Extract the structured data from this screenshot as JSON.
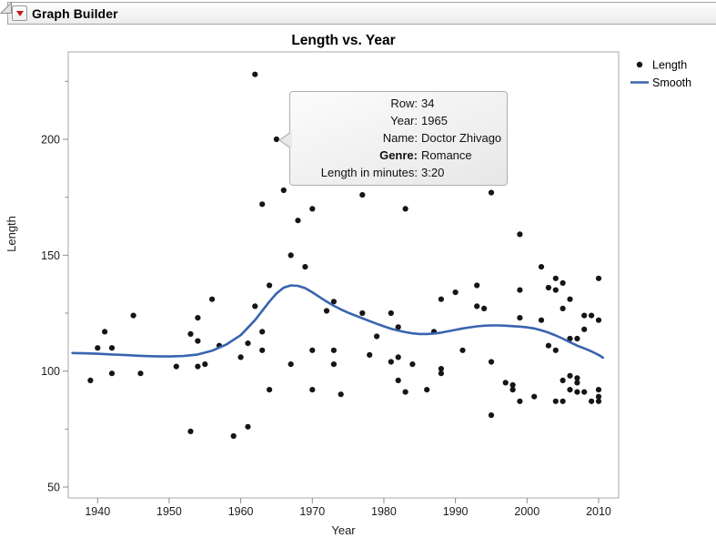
{
  "window": {
    "title": "Graph Builder"
  },
  "header": {
    "disclosure_icon": "disclosure-triangle",
    "menu_icon": "red-triangle-menu"
  },
  "tooltip": {
    "rows": [
      {
        "label": "Row:",
        "value": "34"
      },
      {
        "label": "Year:",
        "value": "1965"
      },
      {
        "label": "Name:",
        "value": "Doctor Zhivago"
      },
      {
        "label": "Genre:",
        "value": "Romance"
      },
      {
        "label": "Length in minutes:",
        "value": "3:20"
      }
    ]
  },
  "colors": {
    "point": "#151515",
    "smooth": "#3a64ae",
    "frame": "#a9a9a9",
    "tick": "#8c8c8c",
    "red_triangle": "#c41a1a"
  },
  "chart_data": {
    "type": "scatter",
    "title": "Length vs. Year",
    "xlabel": "Year",
    "ylabel": "Length",
    "xlim": [
      1935.9,
      2012.8
    ],
    "ylim": [
      45.3,
      237.7
    ],
    "x_ticks": [
      1940,
      1950,
      1960,
      1970,
      1980,
      1990,
      2000,
      2010
    ],
    "y_ticks_major": [
      50,
      100,
      150,
      200
    ],
    "y_ticks_minor": [
      75,
      125,
      175,
      225
    ],
    "grid": false,
    "legend_position": "right",
    "highlighted_point": [
      1965,
      200
    ],
    "legend": [
      {
        "label": "Length",
        "marker": "dot",
        "color": "#151515"
      },
      {
        "label": "Smooth",
        "marker": "line",
        "color": "#3a64ae"
      }
    ],
    "series": [
      {
        "name": "Length",
        "type": "scatter",
        "color": "#151515",
        "points": [
          [
            1939,
            96
          ],
          [
            1940,
            110
          ],
          [
            1941,
            117
          ],
          [
            1942,
            99
          ],
          [
            1942,
            110
          ],
          [
            1945,
            124
          ],
          [
            1946,
            99
          ],
          [
            1951,
            102
          ],
          [
            1953,
            74
          ],
          [
            1953,
            116
          ],
          [
            1954,
            102
          ],
          [
            1954,
            113
          ],
          [
            1954,
            123
          ],
          [
            1955,
            103
          ],
          [
            1956,
            131
          ],
          [
            1957,
            111
          ],
          [
            1959,
            72
          ],
          [
            1960,
            106
          ],
          [
            1961,
            76
          ],
          [
            1961,
            112
          ],
          [
            1962,
            128
          ],
          [
            1962,
            228
          ],
          [
            1963,
            109
          ],
          [
            1963,
            117
          ],
          [
            1963,
            172
          ],
          [
            1964,
            92
          ],
          [
            1964,
            137
          ],
          [
            1965,
            200
          ],
          [
            1966,
            178
          ],
          [
            1967,
            103
          ],
          [
            1967,
            150
          ],
          [
            1968,
            165
          ],
          [
            1969,
            145
          ],
          [
            1970,
            92
          ],
          [
            1970,
            109
          ],
          [
            1970,
            170
          ],
          [
            1972,
            126
          ],
          [
            1973,
            103
          ],
          [
            1973,
            109
          ],
          [
            1973,
            130
          ],
          [
            1974,
            90
          ],
          [
            1977,
            125
          ],
          [
            1977,
            176
          ],
          [
            1978,
            107
          ],
          [
            1979,
            115
          ],
          [
            1981,
            104
          ],
          [
            1981,
            125
          ],
          [
            1982,
            96
          ],
          [
            1982,
            106
          ],
          [
            1982,
            119
          ],
          [
            1983,
            91
          ],
          [
            1983,
            170
          ],
          [
            1984,
            103
          ],
          [
            1986,
            92
          ],
          [
            1987,
            117
          ],
          [
            1988,
            99
          ],
          [
            1988,
            101
          ],
          [
            1988,
            131
          ],
          [
            1990,
            134
          ],
          [
            1991,
            109
          ],
          [
            1993,
            128
          ],
          [
            1993,
            137
          ],
          [
            1994,
            127
          ],
          [
            1995,
            81
          ],
          [
            1995,
            104
          ],
          [
            1995,
            177
          ],
          [
            1997,
            95
          ],
          [
            1998,
            92
          ],
          [
            1998,
            94
          ],
          [
            1999,
            87
          ],
          [
            1999,
            123
          ],
          [
            1999,
            135
          ],
          [
            1999,
            159
          ],
          [
            2001,
            89
          ],
          [
            2002,
            122
          ],
          [
            2002,
            145
          ],
          [
            2003,
            111
          ],
          [
            2003,
            136
          ],
          [
            2004,
            87
          ],
          [
            2004,
            109
          ],
          [
            2004,
            135
          ],
          [
            2004,
            140
          ],
          [
            2005,
            87
          ],
          [
            2005,
            96
          ],
          [
            2005,
            127
          ],
          [
            2005,
            138
          ],
          [
            2006,
            92
          ],
          [
            2006,
            98
          ],
          [
            2006,
            114
          ],
          [
            2006,
            131
          ],
          [
            2007,
            91
          ],
          [
            2007,
            95
          ],
          [
            2007,
            97
          ],
          [
            2007,
            114
          ],
          [
            2008,
            91
          ],
          [
            2008,
            118
          ],
          [
            2008,
            124
          ],
          [
            2009,
            87
          ],
          [
            2009,
            124
          ],
          [
            2010,
            87
          ],
          [
            2010,
            89
          ],
          [
            2010,
            92
          ],
          [
            2010,
            122
          ],
          [
            2010,
            140
          ]
        ]
      },
      {
        "name": "Smooth",
        "type": "line",
        "color": "#3a64ae",
        "points": [
          [
            1936.5,
            107.8
          ],
          [
            1938,
            107.7
          ],
          [
            1940,
            107.5
          ],
          [
            1942,
            107.2
          ],
          [
            1944,
            106.9
          ],
          [
            1946,
            106.6
          ],
          [
            1948,
            106.4
          ],
          [
            1950,
            106.3
          ],
          [
            1952,
            106.5
          ],
          [
            1954,
            107.2
          ],
          [
            1956,
            108.8
          ],
          [
            1958,
            111.5
          ],
          [
            1960,
            115.5
          ],
          [
            1962,
            122
          ],
          [
            1964,
            130
          ],
          [
            1965,
            133.5
          ],
          [
            1966,
            136
          ],
          [
            1967,
            137
          ],
          [
            1968,
            136.8
          ],
          [
            1969,
            135.8
          ],
          [
            1970,
            134
          ],
          [
            1971,
            132
          ],
          [
            1972,
            130
          ],
          [
            1973,
            128.2
          ],
          [
            1974,
            126.6
          ],
          [
            1975,
            125.2
          ],
          [
            1976,
            124
          ],
          [
            1977,
            122.8
          ],
          [
            1978,
            121.6
          ],
          [
            1979,
            120.4
          ],
          [
            1980,
            119.3
          ],
          [
            1981,
            118.3
          ],
          [
            1982,
            117.5
          ],
          [
            1983,
            116.8
          ],
          [
            1984,
            116.3
          ],
          [
            1985,
            116
          ],
          [
            1986,
            116
          ],
          [
            1987,
            116.2
          ],
          [
            1988,
            116.6
          ],
          [
            1989,
            117.2
          ],
          [
            1990,
            117.8
          ],
          [
            1991,
            118.4
          ],
          [
            1992,
            118.9
          ],
          [
            1993,
            119.3
          ],
          [
            1994,
            119.6
          ],
          [
            1995,
            119.7
          ],
          [
            1996,
            119.7
          ],
          [
            1997,
            119.6
          ],
          [
            1998,
            119.4
          ],
          [
            1999,
            119.2
          ],
          [
            2000,
            118.9
          ],
          [
            2001,
            118.4
          ],
          [
            2002,
            117.6
          ],
          [
            2003,
            116.6
          ],
          [
            2004,
            115.4
          ],
          [
            2005,
            114
          ],
          [
            2006,
            112.5
          ],
          [
            2007,
            111
          ],
          [
            2008,
            109.8
          ],
          [
            2009,
            108.5
          ],
          [
            2010,
            107
          ],
          [
            2010.6,
            105.8
          ]
        ]
      }
    ]
  }
}
